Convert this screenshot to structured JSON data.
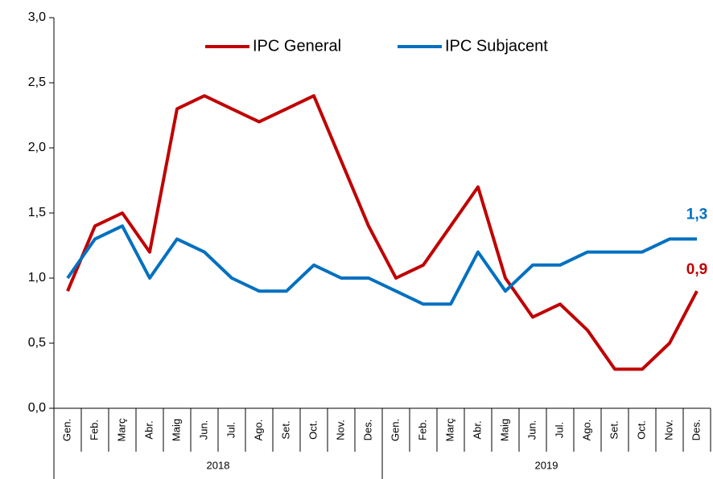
{
  "chart_data": {
    "type": "line",
    "categories": [
      "Gen.",
      "Feb.",
      "Març",
      "Abr.",
      "Maig",
      "Jun.",
      "Jul.",
      "Ago.",
      "Set.",
      "Oct.",
      "Nov.",
      "Des.",
      "Gen.",
      "Feb.",
      "Març",
      "Abr.",
      "Maig",
      "Jun.",
      "Jul.",
      "Ago.",
      "Set.",
      "Oct.",
      "Nov.",
      "Des."
    ],
    "groups": [
      "2018",
      "2019"
    ],
    "series": [
      {
        "name": "IPC General",
        "color": "#c00000",
        "values": [
          0.9,
          1.4,
          1.5,
          1.2,
          2.3,
          2.4,
          2.3,
          2.2,
          2.3,
          2.4,
          1.9,
          1.4,
          1.0,
          1.1,
          1.4,
          1.7,
          1.0,
          0.7,
          0.8,
          0.6,
          0.3,
          0.3,
          0.5,
          0.9
        ],
        "value_labels": [
          null,
          null,
          null,
          null,
          null,
          null,
          null,
          null,
          null,
          null,
          null,
          null,
          null,
          null,
          null,
          null,
          null,
          null,
          null,
          null,
          null,
          null,
          null,
          "0,9"
        ]
      },
      {
        "name": "IPC Subjacent",
        "color": "#0070c0",
        "values": [
          1.0,
          1.3,
          1.4,
          1.0,
          1.3,
          1.2,
          1.0,
          0.9,
          0.9,
          1.1,
          1.0,
          1.0,
          0.9,
          0.8,
          0.8,
          1.2,
          0.9,
          1.1,
          1.1,
          1.2,
          1.2,
          1.2,
          1.3,
          1.3
        ],
        "value_labels": [
          null,
          null,
          null,
          null,
          null,
          null,
          null,
          null,
          null,
          null,
          null,
          null,
          null,
          null,
          null,
          null,
          null,
          null,
          null,
          null,
          null,
          null,
          null,
          "1,3"
        ]
      }
    ],
    "ylim": [
      0,
      3
    ],
    "yticks": [
      {
        "value": 0,
        "label": "0,0"
      },
      {
        "value": 0.5,
        "label": "0,5"
      },
      {
        "value": 1,
        "label": "1,0"
      },
      {
        "value": 1.5,
        "label": "1,5"
      },
      {
        "value": 2,
        "label": "2,0"
      },
      {
        "value": 2.5,
        "label": "2,5"
      },
      {
        "value": 3,
        "label": "3,0"
      }
    ],
    "grid": false
  }
}
